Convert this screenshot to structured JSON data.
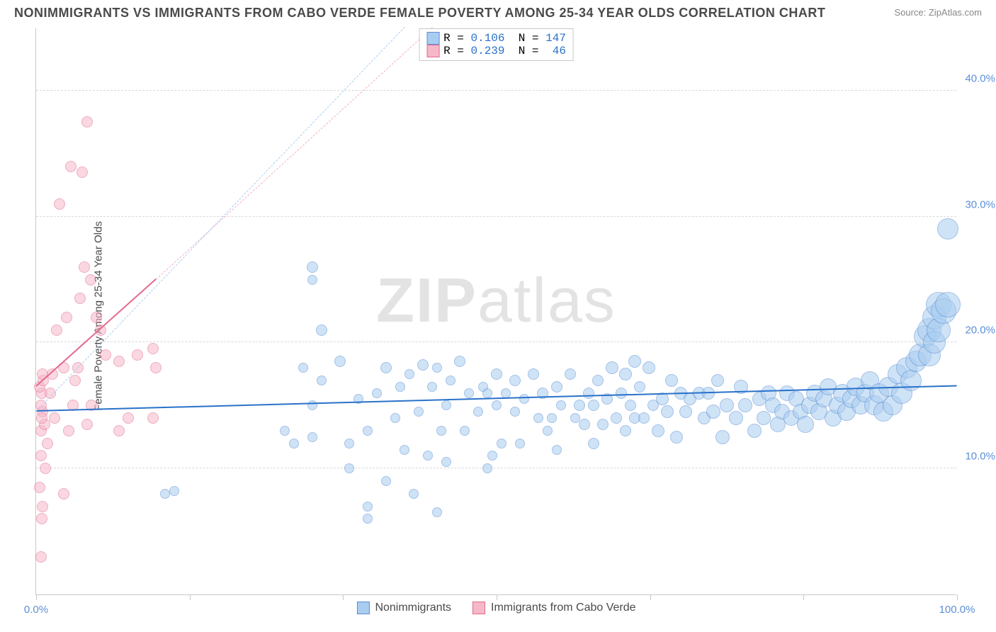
{
  "title": "NONIMMIGRANTS VS IMMIGRANTS FROM CABO VERDE FEMALE POVERTY AMONG 25-34 YEAR OLDS CORRELATION CHART",
  "source_label": "Source: ZipAtlas.com",
  "watermark": {
    "part1": "ZIP",
    "part2": "atlas"
  },
  "ylabel": "Female Poverty Among 25-34 Year Olds",
  "chart": {
    "type": "scatter",
    "xlim": [
      0,
      100
    ],
    "ylim": [
      0,
      45
    ],
    "x_ticks": [
      0,
      16.67,
      33.33,
      50,
      66.67,
      83.33,
      100
    ],
    "x_tick_labels": {
      "0": "0.0%",
      "100": "100.0%"
    },
    "y_gridlines": [
      10,
      20,
      30,
      40
    ],
    "y_tick_labels": [
      "10.0%",
      "20.0%",
      "30.0%",
      "40.0%"
    ],
    "background_color": "#ffffff",
    "grid_color": "#d8d8d8",
    "axis_color": "#c8c8c8"
  },
  "series": {
    "blue": {
      "label": "Nonimmigrants",
      "fill": "#a9cdf0",
      "stroke": "#5b8fd6",
      "fill_opacity": 0.55,
      "line_color": "#2a71c9",
      "dash_color": "#a9cdf0",
      "R": "0.106",
      "N": "147",
      "regression": {
        "x1": 0,
        "y1": 14.5,
        "x2": 100,
        "y2": 16.5
      },
      "dash_extension": {
        "x1": 0,
        "y1": 14.5,
        "x2": 40,
        "y2": 45
      },
      "points": [
        {
          "x": 14,
          "y": 8,
          "r": 7
        },
        {
          "x": 15,
          "y": 8.2,
          "r": 7
        },
        {
          "x": 29,
          "y": 18,
          "r": 7
        },
        {
          "x": 30,
          "y": 26,
          "r": 8
        },
        {
          "x": 31,
          "y": 21,
          "r": 8
        },
        {
          "x": 30,
          "y": 25,
          "r": 7
        },
        {
          "x": 27,
          "y": 13,
          "r": 7
        },
        {
          "x": 28,
          "y": 12,
          "r": 7
        },
        {
          "x": 30,
          "y": 12.5,
          "r": 7
        },
        {
          "x": 33,
          "y": 18.5,
          "r": 8
        },
        {
          "x": 36,
          "y": 7,
          "r": 7
        },
        {
          "x": 34,
          "y": 12,
          "r": 7
        },
        {
          "x": 34,
          "y": 10,
          "r": 7
        },
        {
          "x": 36,
          "y": 6,
          "r": 7
        },
        {
          "x": 30,
          "y": 15,
          "r": 7
        },
        {
          "x": 31,
          "y": 17,
          "r": 7
        },
        {
          "x": 35,
          "y": 15.5,
          "r": 7
        },
        {
          "x": 36,
          "y": 13,
          "r": 7
        },
        {
          "x": 37,
          "y": 16,
          "r": 7
        },
        {
          "x": 38,
          "y": 18,
          "r": 8
        },
        {
          "x": 38,
          "y": 9,
          "r": 7
        },
        {
          "x": 39,
          "y": 14,
          "r": 7
        },
        {
          "x": 39.5,
          "y": 16.5,
          "r": 7
        },
        {
          "x": 40,
          "y": 11.5,
          "r": 7
        },
        {
          "x": 40.5,
          "y": 17.5,
          "r": 7
        },
        {
          "x": 41,
          "y": 8,
          "r": 7
        },
        {
          "x": 41.5,
          "y": 14.5,
          "r": 7
        },
        {
          "x": 42,
          "y": 18.2,
          "r": 8
        },
        {
          "x": 42.5,
          "y": 11,
          "r": 7
        },
        {
          "x": 43,
          "y": 16.5,
          "r": 7
        },
        {
          "x": 43.5,
          "y": 18,
          "r": 7
        },
        {
          "x": 43.5,
          "y": 6.5,
          "r": 7
        },
        {
          "x": 44,
          "y": 13,
          "r": 7
        },
        {
          "x": 44.5,
          "y": 15,
          "r": 7
        },
        {
          "x": 44.5,
          "y": 10.5,
          "r": 7
        },
        {
          "x": 45,
          "y": 17,
          "r": 7
        },
        {
          "x": 46,
          "y": 18.5,
          "r": 8
        },
        {
          "x": 46.5,
          "y": 13,
          "r": 7
        },
        {
          "x": 47,
          "y": 16,
          "r": 7
        },
        {
          "x": 48,
          "y": 14.5,
          "r": 7
        },
        {
          "x": 48.5,
          "y": 16.5,
          "r": 7
        },
        {
          "x": 49,
          "y": 10,
          "r": 7
        },
        {
          "x": 49,
          "y": 16,
          "r": 7
        },
        {
          "x": 49.5,
          "y": 11,
          "r": 7
        },
        {
          "x": 50,
          "y": 17.5,
          "r": 8
        },
        {
          "x": 50,
          "y": 15,
          "r": 7
        },
        {
          "x": 50.5,
          "y": 12,
          "r": 7
        },
        {
          "x": 51,
          "y": 16,
          "r": 7
        },
        {
          "x": 52,
          "y": 14.5,
          "r": 7
        },
        {
          "x": 52,
          "y": 17,
          "r": 8
        },
        {
          "x": 52.5,
          "y": 12,
          "r": 7
        },
        {
          "x": 53,
          "y": 15.5,
          "r": 7
        },
        {
          "x": 54,
          "y": 17.5,
          "r": 8
        },
        {
          "x": 54.5,
          "y": 14,
          "r": 7
        },
        {
          "x": 55,
          "y": 16,
          "r": 8
        },
        {
          "x": 55.5,
          "y": 13,
          "r": 7
        },
        {
          "x": 56,
          "y": 14,
          "r": 7
        },
        {
          "x": 56.5,
          "y": 16.5,
          "r": 8
        },
        {
          "x": 56.5,
          "y": 11.5,
          "r": 7
        },
        {
          "x": 57,
          "y": 15,
          "r": 7
        },
        {
          "x": 58,
          "y": 17.5,
          "r": 8
        },
        {
          "x": 58.5,
          "y": 14,
          "r": 7
        },
        {
          "x": 59,
          "y": 15,
          "r": 8
        },
        {
          "x": 59.5,
          "y": 13.5,
          "r": 8
        },
        {
          "x": 60,
          "y": 16,
          "r": 8
        },
        {
          "x": 60.5,
          "y": 15,
          "r": 8
        },
        {
          "x": 60.5,
          "y": 12,
          "r": 8
        },
        {
          "x": 61,
          "y": 17,
          "r": 8
        },
        {
          "x": 61.5,
          "y": 13.5,
          "r": 8
        },
        {
          "x": 62,
          "y": 15.5,
          "r": 8
        },
        {
          "x": 62.5,
          "y": 18,
          "r": 9
        },
        {
          "x": 63,
          "y": 14,
          "r": 8
        },
        {
          "x": 63.5,
          "y": 16,
          "r": 8
        },
        {
          "x": 64,
          "y": 17.5,
          "r": 9
        },
        {
          "x": 64,
          "y": 13,
          "r": 8
        },
        {
          "x": 64.5,
          "y": 15,
          "r": 8
        },
        {
          "x": 65,
          "y": 18.5,
          "r": 9
        },
        {
          "x": 65,
          "y": 14,
          "r": 8
        },
        {
          "x": 65.5,
          "y": 16.5,
          "r": 8
        },
        {
          "x": 66,
          "y": 14,
          "r": 8
        },
        {
          "x": 66.5,
          "y": 18,
          "r": 9
        },
        {
          "x": 67,
          "y": 15,
          "r": 8
        },
        {
          "x": 67.5,
          "y": 13,
          "r": 9
        },
        {
          "x": 68,
          "y": 15.5,
          "r": 9
        },
        {
          "x": 68.5,
          "y": 14.5,
          "r": 9
        },
        {
          "x": 69,
          "y": 17,
          "r": 9
        },
        {
          "x": 69.5,
          "y": 12.5,
          "r": 9
        },
        {
          "x": 70,
          "y": 16,
          "r": 9
        },
        {
          "x": 70.5,
          "y": 14.5,
          "r": 9
        },
        {
          "x": 71,
          "y": 15.5,
          "r": 9
        },
        {
          "x": 72,
          "y": 16,
          "r": 9
        },
        {
          "x": 72.5,
          "y": 14,
          "r": 9
        },
        {
          "x": 73,
          "y": 16,
          "r": 9
        },
        {
          "x": 73.5,
          "y": 14.5,
          "r": 10
        },
        {
          "x": 74,
          "y": 17,
          "r": 9
        },
        {
          "x": 74.5,
          "y": 12.5,
          "r": 10
        },
        {
          "x": 75,
          "y": 15,
          "r": 10
        },
        {
          "x": 76,
          "y": 14,
          "r": 10
        },
        {
          "x": 76.5,
          "y": 16.5,
          "r": 10
        },
        {
          "x": 77,
          "y": 15,
          "r": 10
        },
        {
          "x": 78,
          "y": 13,
          "r": 10
        },
        {
          "x": 78.5,
          "y": 15.5,
          "r": 10
        },
        {
          "x": 79,
          "y": 14,
          "r": 10
        },
        {
          "x": 79.5,
          "y": 16,
          "r": 11
        },
        {
          "x": 80,
          "y": 15,
          "r": 11
        },
        {
          "x": 80.5,
          "y": 13.5,
          "r": 11
        },
        {
          "x": 81,
          "y": 14.5,
          "r": 11
        },
        {
          "x": 81.5,
          "y": 16,
          "r": 11
        },
        {
          "x": 82,
          "y": 14,
          "r": 11
        },
        {
          "x": 82.5,
          "y": 15.5,
          "r": 11
        },
        {
          "x": 83,
          "y": 14.5,
          "r": 11
        },
        {
          "x": 83.5,
          "y": 13.5,
          "r": 12
        },
        {
          "x": 84,
          "y": 15,
          "r": 12
        },
        {
          "x": 84.5,
          "y": 16,
          "r": 12
        },
        {
          "x": 85,
          "y": 14.5,
          "r": 12
        },
        {
          "x": 85.5,
          "y": 15.5,
          "r": 12
        },
        {
          "x": 86,
          "y": 16.5,
          "r": 12
        },
        {
          "x": 86.5,
          "y": 14,
          "r": 12
        },
        {
          "x": 87,
          "y": 15,
          "r": 12
        },
        {
          "x": 87.5,
          "y": 16,
          "r": 13
        },
        {
          "x": 88,
          "y": 14.5,
          "r": 13
        },
        {
          "x": 88.5,
          "y": 15.5,
          "r": 13
        },
        {
          "x": 89,
          "y": 16.5,
          "r": 13
        },
        {
          "x": 89.5,
          "y": 15,
          "r": 13
        },
        {
          "x": 90,
          "y": 16,
          "r": 13
        },
        {
          "x": 90.5,
          "y": 17,
          "r": 13
        },
        {
          "x": 91,
          "y": 15,
          "r": 14
        },
        {
          "x": 91.5,
          "y": 16,
          "r": 14
        },
        {
          "x": 92,
          "y": 14.5,
          "r": 14
        },
        {
          "x": 92.5,
          "y": 16.5,
          "r": 14
        },
        {
          "x": 93,
          "y": 15,
          "r": 14
        },
        {
          "x": 93.5,
          "y": 17.5,
          "r": 14
        },
        {
          "x": 94,
          "y": 16,
          "r": 15
        },
        {
          "x": 94.5,
          "y": 18,
          "r": 15
        },
        {
          "x": 95,
          "y": 17,
          "r": 15
        },
        {
          "x": 95.5,
          "y": 18.5,
          "r": 15
        },
        {
          "x": 96,
          "y": 19,
          "r": 16
        },
        {
          "x": 96.5,
          "y": 20.5,
          "r": 16
        },
        {
          "x": 97,
          "y": 21,
          "r": 17
        },
        {
          "x": 97,
          "y": 19,
          "r": 16
        },
        {
          "x": 97.5,
          "y": 22,
          "r": 17
        },
        {
          "x": 97.5,
          "y": 20,
          "r": 16
        },
        {
          "x": 98,
          "y": 23,
          "r": 18
        },
        {
          "x": 98,
          "y": 21,
          "r": 17
        },
        {
          "x": 98.5,
          "y": 22.5,
          "r": 18
        },
        {
          "x": 99,
          "y": 29,
          "r": 15
        },
        {
          "x": 99,
          "y": 23,
          "r": 18
        }
      ]
    },
    "pink": {
      "label": "Immigrants from Cabo Verde",
      "fill": "#f6b8c9",
      "stroke": "#e26a8f",
      "fill_opacity": 0.55,
      "line_color": "#e26a8f",
      "dash_color": "#f3b0c3",
      "R": "0.239",
      "N": " 46",
      "regression": {
        "x1": 0,
        "y1": 16.5,
        "x2": 13,
        "y2": 25
      },
      "dash_extension": {
        "x1": 13,
        "y1": 25,
        "x2": 43,
        "y2": 45
      },
      "points": [
        {
          "x": 0.5,
          "y": 3,
          "r": 8
        },
        {
          "x": 0.6,
          "y": 6,
          "r": 8
        },
        {
          "x": 0.7,
          "y": 7,
          "r": 8
        },
        {
          "x": 0.4,
          "y": 8.5,
          "r": 8
        },
        {
          "x": 1,
          "y": 10,
          "r": 8
        },
        {
          "x": 0.5,
          "y": 11,
          "r": 8
        },
        {
          "x": 1.2,
          "y": 12,
          "r": 8
        },
        {
          "x": 0.5,
          "y": 13,
          "r": 8
        },
        {
          "x": 0.9,
          "y": 13.5,
          "r": 8
        },
        {
          "x": 0.7,
          "y": 14.5,
          "r": 8
        },
        {
          "x": 0.5,
          "y": 15,
          "r": 8
        },
        {
          "x": 0.6,
          "y": 16,
          "r": 8
        },
        {
          "x": 0.4,
          "y": 16.5,
          "r": 8
        },
        {
          "x": 0.8,
          "y": 17,
          "r": 8
        },
        {
          "x": 0.7,
          "y": 17.5,
          "r": 8
        },
        {
          "x": 0.6,
          "y": 14,
          "r": 8
        },
        {
          "x": 1.5,
          "y": 16,
          "r": 8
        },
        {
          "x": 1.8,
          "y": 17.5,
          "r": 8
        },
        {
          "x": 2,
          "y": 14,
          "r": 8
        },
        {
          "x": 2.2,
          "y": 21,
          "r": 8
        },
        {
          "x": 2.5,
          "y": 31,
          "r": 8
        },
        {
          "x": 3,
          "y": 8,
          "r": 8
        },
        {
          "x": 3,
          "y": 18,
          "r": 8
        },
        {
          "x": 3.3,
          "y": 22,
          "r": 8
        },
        {
          "x": 3.5,
          "y": 13,
          "r": 8
        },
        {
          "x": 3.8,
          "y": 34,
          "r": 8
        },
        {
          "x": 4,
          "y": 15,
          "r": 8
        },
        {
          "x": 4.2,
          "y": 17,
          "r": 8
        },
        {
          "x": 4.5,
          "y": 18,
          "r": 8
        },
        {
          "x": 4.8,
          "y": 23.5,
          "r": 8
        },
        {
          "x": 5,
          "y": 33.5,
          "r": 8
        },
        {
          "x": 5.2,
          "y": 26,
          "r": 8
        },
        {
          "x": 5.5,
          "y": 13.5,
          "r": 8
        },
        {
          "x": 5.5,
          "y": 37.5,
          "r": 8
        },
        {
          "x": 5.9,
          "y": 25,
          "r": 8
        },
        {
          "x": 6,
          "y": 15,
          "r": 8
        },
        {
          "x": 6.5,
          "y": 22,
          "r": 8
        },
        {
          "x": 7,
          "y": 21,
          "r": 8
        },
        {
          "x": 7.5,
          "y": 19,
          "r": 8
        },
        {
          "x": 9,
          "y": 18.5,
          "r": 8
        },
        {
          "x": 9,
          "y": 13,
          "r": 8
        },
        {
          "x": 10,
          "y": 14,
          "r": 8
        },
        {
          "x": 11,
          "y": 19,
          "r": 8
        },
        {
          "x": 12.7,
          "y": 19.5,
          "r": 8
        },
        {
          "x": 12.7,
          "y": 14,
          "r": 8
        },
        {
          "x": 13,
          "y": 18,
          "r": 8
        }
      ]
    }
  },
  "legend": {
    "stat_color": "#2a71c9"
  }
}
